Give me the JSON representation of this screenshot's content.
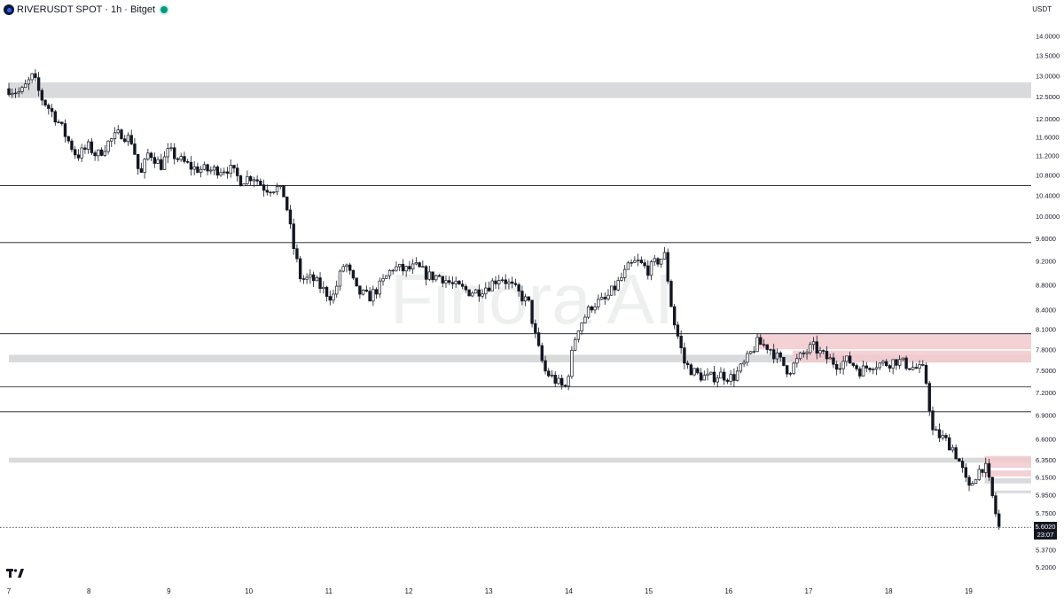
{
  "header": {
    "symbol": "RIVERUSDT SPOT",
    "interval": "1h",
    "exchange": "Bitget",
    "separator": "·"
  },
  "currency_label": "USDT",
  "watermark": "Finora AI",
  "current_price": {
    "value": "5.6020",
    "countdown": "23:07"
  },
  "colors": {
    "background": "#ffffff",
    "candle_up": "#ffffff",
    "candle_down": "#131722",
    "candle_outline": "#131722",
    "gray_zone": "#d9dadc",
    "red_zone": "#f2c9cc",
    "level_line": "#131722",
    "axis_text": "#131722"
  },
  "icons": {
    "logo": "river-logo-icon",
    "status": "live-status-icon",
    "brand": "tradingview-logo-icon"
  },
  "chart_data": {
    "type": "candlestick",
    "title": "RIVERUSDT SPOT · 1h · Bitget",
    "y_scale": "log",
    "ylim": [
      5.05,
      14.45
    ],
    "x_ticks": [
      "7",
      "8",
      "9",
      "10",
      "11",
      "12",
      "13",
      "14",
      "15",
      "16",
      "17",
      "18",
      "19"
    ],
    "y_ticks": [
      {
        "value": 14.0,
        "label": "14.0000"
      },
      {
        "value": 13.5,
        "label": "13.5000"
      },
      {
        "value": 13.0,
        "label": "13.0000"
      },
      {
        "value": 12.5,
        "label": "12.5000"
      },
      {
        "value": 12.0,
        "label": "12.0000"
      },
      {
        "value": 11.6,
        "label": "11.6000"
      },
      {
        "value": 11.2,
        "label": "11.2000"
      },
      {
        "value": 10.8,
        "label": "10.8000"
      },
      {
        "value": 10.4,
        "label": "10.4000"
      },
      {
        "value": 10.0,
        "label": "10.0000"
      },
      {
        "value": 9.6,
        "label": "9.6000"
      },
      {
        "value": 9.2,
        "label": "9.2000"
      },
      {
        "value": 8.8,
        "label": "8.8000"
      },
      {
        "value": 8.4,
        "label": "8.4000"
      },
      {
        "value": 8.1,
        "label": "8.1000"
      },
      {
        "value": 7.8,
        "label": "7.8000"
      },
      {
        "value": 7.5,
        "label": "7.5000"
      },
      {
        "value": 7.2,
        "label": "7.2000"
      },
      {
        "value": 6.9,
        "label": "6.9000"
      },
      {
        "value": 6.6,
        "label": "6.6000"
      },
      {
        "value": 6.35,
        "label": "6.3500"
      },
      {
        "value": 6.15,
        "label": "6.1500"
      },
      {
        "value": 5.95,
        "label": "5.9500"
      },
      {
        "value": 5.75,
        "label": "5.7500"
      },
      {
        "value": 5.37,
        "label": "5.3700"
      },
      {
        "value": 5.2,
        "label": "5.2000"
      }
    ],
    "horizontal_levels": [
      10.6,
      9.53,
      8.04,
      7.28,
      6.95
    ],
    "zones": [
      {
        "kind": "support-resistance",
        "low": 12.48,
        "high": 12.85,
        "x_from": 7.0,
        "x_to": 19.85
      },
      {
        "kind": "support-resistance",
        "low": 7.62,
        "high": 7.73,
        "x_from": 7.0,
        "x_to": 19.85
      },
      {
        "kind": "support-resistance",
        "low": 6.32,
        "high": 6.38,
        "x_from": 7.0,
        "x_to": 19.85
      },
      {
        "kind": "supply",
        "low": 7.81,
        "high": 8.04,
        "x_from": 16.35,
        "x_to": 19.85
      },
      {
        "kind": "supply",
        "low": 7.62,
        "high": 7.79,
        "x_from": 16.8,
        "x_to": 19.85
      },
      {
        "kind": "supply",
        "low": 6.26,
        "high": 6.4,
        "x_from": 19.2,
        "x_to": 19.85
      },
      {
        "kind": "supply",
        "low": 6.16,
        "high": 6.23,
        "x_from": 19.2,
        "x_to": 19.85
      },
      {
        "kind": "support-resistance",
        "low": 6.08,
        "high": 6.14,
        "x_from": 19.2,
        "x_to": 19.85
      },
      {
        "kind": "support-resistance",
        "low": 5.97,
        "high": 6.0,
        "x_from": 19.3,
        "x_to": 19.8
      }
    ],
    "anchors": [
      [
        7.0,
        12.7
      ],
      [
        7.15,
        12.6
      ],
      [
        7.3,
        13.0
      ],
      [
        7.4,
        12.5
      ],
      [
        7.6,
        12.0
      ],
      [
        7.75,
        11.5
      ],
      [
        7.85,
        11.2
      ],
      [
        8.0,
        11.4
      ],
      [
        8.1,
        11.2
      ],
      [
        8.25,
        11.5
      ],
      [
        8.4,
        11.7
      ],
      [
        8.55,
        11.5
      ],
      [
        8.6,
        11.0
      ],
      [
        8.65,
        10.8
      ],
      [
        8.75,
        11.3
      ],
      [
        8.9,
        11.0
      ],
      [
        9.0,
        11.3
      ],
      [
        9.15,
        11.1
      ],
      [
        9.3,
        10.95
      ],
      [
        9.5,
        10.9
      ],
      [
        9.75,
        10.95
      ],
      [
        9.9,
        10.7
      ],
      [
        10.05,
        10.8
      ],
      [
        10.2,
        10.55
      ],
      [
        10.35,
        10.55
      ],
      [
        10.45,
        10.4
      ],
      [
        10.55,
        9.5
      ],
      [
        10.65,
        8.9
      ],
      [
        10.8,
        8.9
      ],
      [
        10.95,
        8.7
      ],
      [
        11.05,
        8.6
      ],
      [
        11.2,
        9.2
      ],
      [
        11.35,
        8.7
      ],
      [
        11.5,
        8.6
      ],
      [
        11.65,
        8.8
      ],
      [
        11.8,
        9.1
      ],
      [
        11.95,
        9.05
      ],
      [
        12.1,
        9.1
      ],
      [
        12.25,
        8.95
      ],
      [
        12.4,
        8.95
      ],
      [
        12.55,
        8.8
      ],
      [
        12.75,
        8.7
      ],
      [
        12.85,
        8.7
      ],
      [
        13.0,
        8.8
      ],
      [
        13.15,
        8.95
      ],
      [
        13.35,
        8.7
      ],
      [
        13.5,
        8.5
      ],
      [
        13.6,
        7.9
      ],
      [
        13.7,
        7.5
      ],
      [
        13.8,
        7.4
      ],
      [
        13.95,
        7.25
      ],
      [
        14.0,
        7.5
      ],
      [
        14.1,
        8.1
      ],
      [
        14.2,
        8.3
      ],
      [
        14.3,
        8.5
      ],
      [
        14.45,
        8.55
      ],
      [
        14.6,
        8.8
      ],
      [
        14.75,
        9.1
      ],
      [
        14.85,
        9.2
      ],
      [
        15.0,
        9.05
      ],
      [
        15.1,
        9.2
      ],
      [
        15.2,
        9.3
      ],
      [
        15.3,
        8.3
      ],
      [
        15.45,
        7.6
      ],
      [
        15.6,
        7.45
      ],
      [
        15.75,
        7.4
      ],
      [
        15.9,
        7.45
      ],
      [
        16.05,
        7.4
      ],
      [
        16.2,
        7.6
      ],
      [
        16.35,
        7.9
      ],
      [
        16.5,
        7.85
      ],
      [
        16.6,
        7.7
      ],
      [
        16.75,
        7.5
      ],
      [
        16.9,
        7.7
      ],
      [
        17.05,
        7.85
      ],
      [
        17.2,
        7.7
      ],
      [
        17.35,
        7.6
      ],
      [
        17.5,
        7.65
      ],
      [
        17.65,
        7.5
      ],
      [
        17.8,
        7.6
      ],
      [
        17.95,
        7.6
      ],
      [
        18.1,
        7.65
      ],
      [
        18.3,
        7.55
      ],
      [
        18.45,
        7.5
      ],
      [
        18.55,
        6.7
      ],
      [
        18.7,
        6.6
      ],
      [
        18.8,
        6.5
      ],
      [
        18.9,
        6.3
      ],
      [
        19.0,
        6.0
      ],
      [
        19.1,
        6.2
      ],
      [
        19.2,
        6.3
      ],
      [
        19.28,
        6.0
      ],
      [
        19.35,
        5.7
      ],
      [
        19.38,
        5.6
      ]
    ],
    "candle_count": 300,
    "current_price": 5.602,
    "last_price_time": 19.38
  }
}
